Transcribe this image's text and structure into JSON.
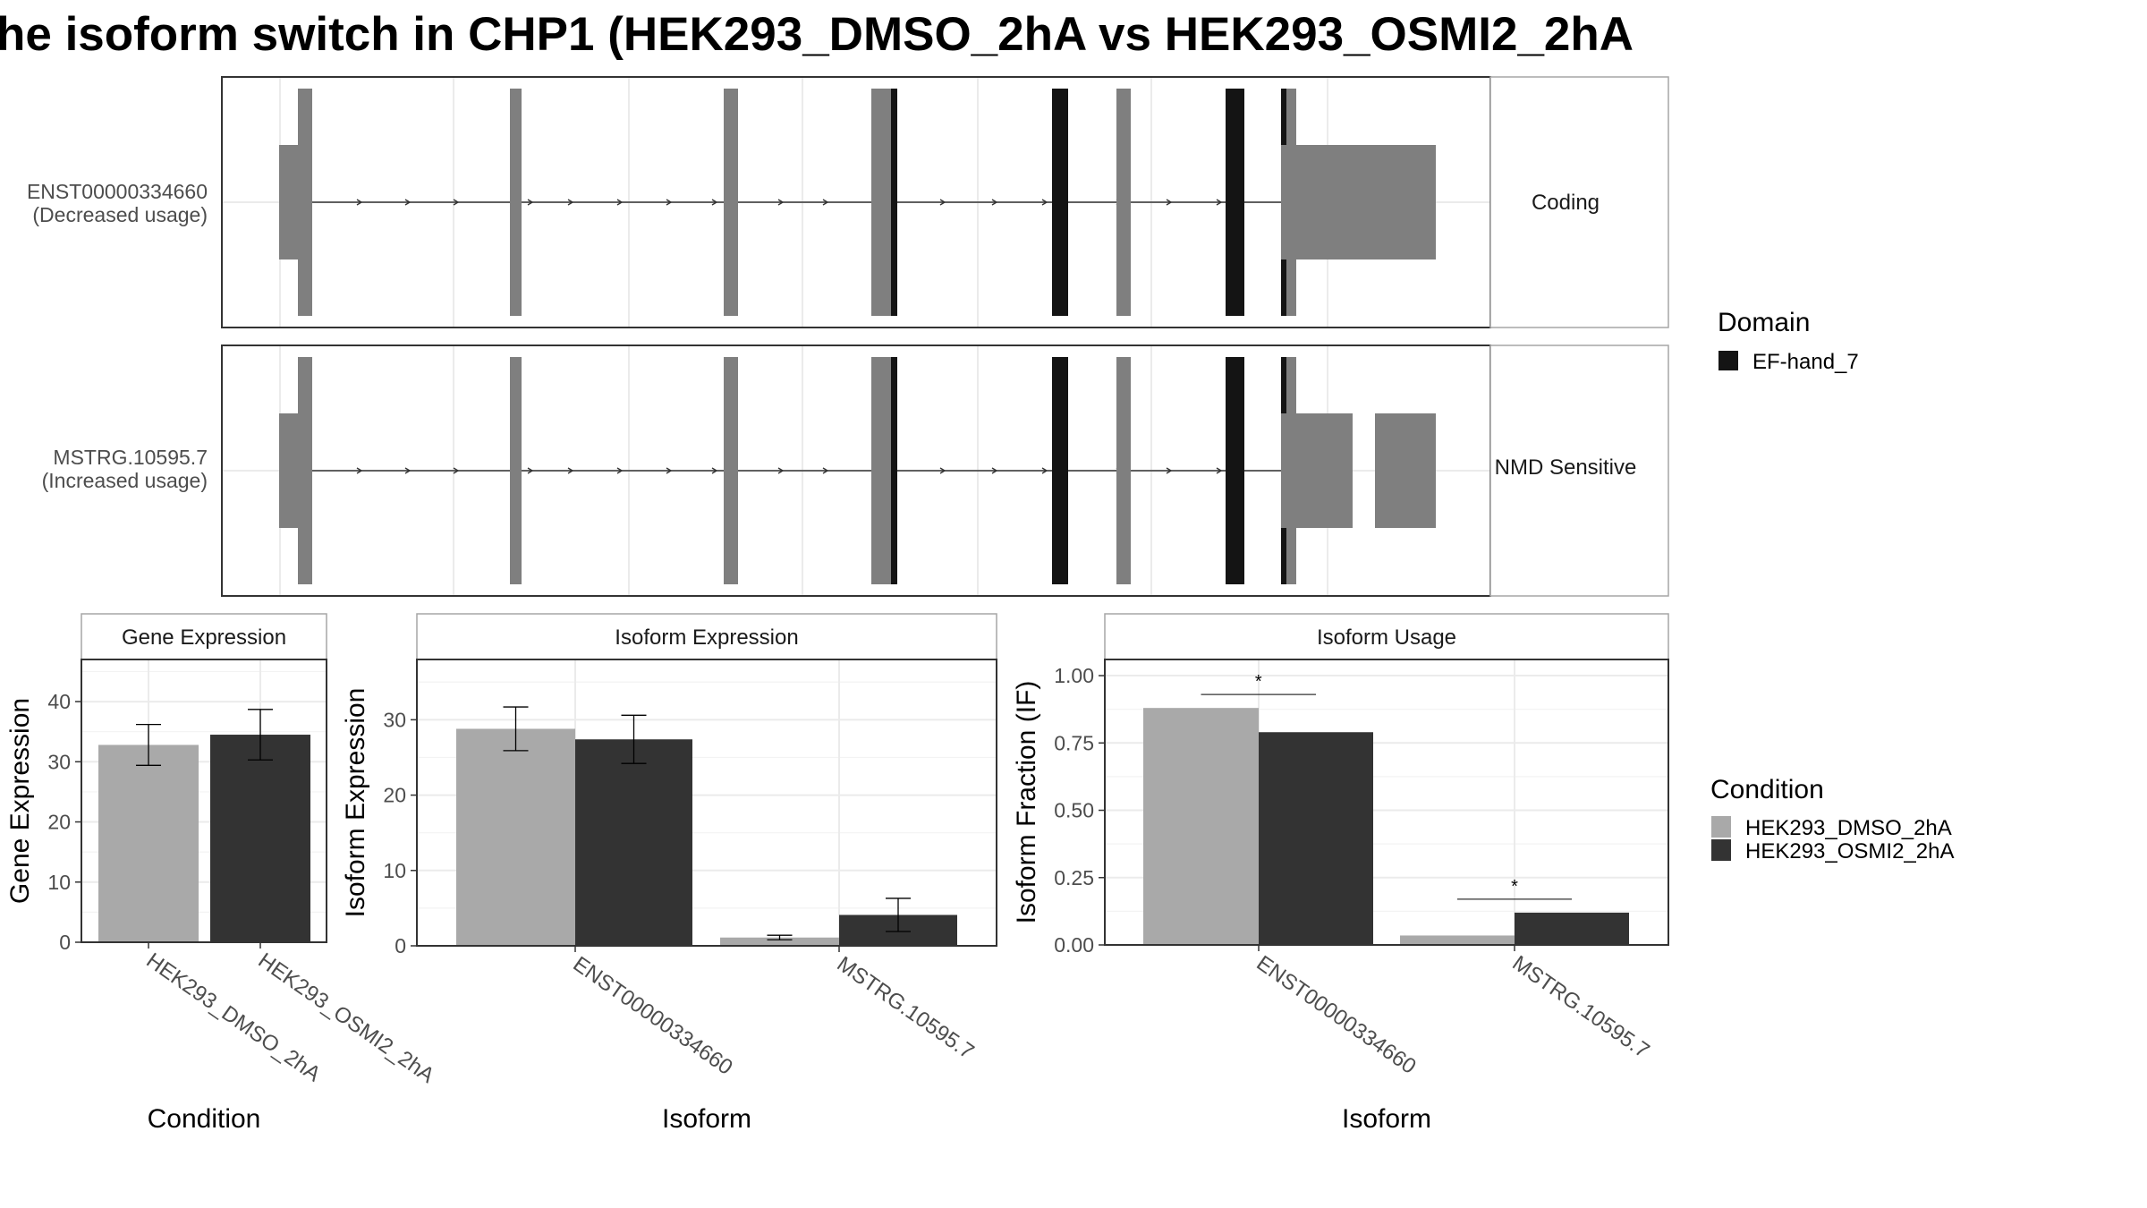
{
  "title": "he isoform switch in CHP1 (HEK293_DMSO_2hA vs HEK293_OSMI2_2hA",
  "colors": {
    "dmso": "#a9a9a9",
    "osmi": "#333333",
    "exon": "#7f7f7f",
    "domain": "#141414",
    "grid": "#ebebeb",
    "axis_text": "#4d4d4d"
  },
  "transcripts": [
    {
      "name": "ENST00000334660",
      "usage": "(Decreased usage)",
      "strip": "Coding"
    },
    {
      "name": "MSTRG.10595.7",
      "usage": "(Increased usage)",
      "strip": "NMD Sensitive"
    }
  ],
  "legend_domain": {
    "title": "Domain",
    "items": [
      {
        "label": "EF-hand_7",
        "color": "#141414"
      }
    ]
  },
  "legend_condition": {
    "title": "Condition",
    "items": [
      {
        "label": "HEK293_DMSO_2hA",
        "color": "#a9a9a9"
      },
      {
        "label": "HEK293_OSMI2_2hA",
        "color": "#333333"
      }
    ]
  },
  "chart_data": [
    {
      "type": "bar",
      "strip": "Gene Expression",
      "xlabel": "Condition",
      "ylabel": "Gene Expression",
      "ylim": [
        0,
        47
      ],
      "yticks": [
        0,
        10,
        20,
        30,
        40
      ],
      "categories": [
        "HEK293_DMSO_2hA",
        "HEK293_OSMI2_2hA"
      ],
      "values": [
        32.8,
        34.5
      ],
      "errors": [
        [
          29.4,
          36.2
        ],
        [
          30.3,
          38.7
        ]
      ]
    },
    {
      "type": "bar",
      "strip": "Isoform Expression",
      "xlabel": "Isoform",
      "ylabel": "Isoform Expression",
      "ylim": [
        0,
        38
      ],
      "yticks": [
        0,
        10,
        20,
        30
      ],
      "categories": [
        "ENST00000334660",
        "MSTRG.10595.7"
      ],
      "series": [
        {
          "name": "HEK293_DMSO_2hA",
          "values": [
            28.8,
            1.1
          ],
          "errors": [
            [
              25.9,
              31.7
            ],
            [
              0.8,
              1.4
            ]
          ]
        },
        {
          "name": "HEK293_OSMI2_2hA",
          "values": [
            27.4,
            4.1
          ],
          "errors": [
            [
              24.2,
              30.6
            ],
            [
              1.9,
              6.3
            ]
          ]
        }
      ]
    },
    {
      "type": "bar",
      "strip": "Isoform Usage",
      "xlabel": "Isoform",
      "ylabel": "Isoform Fraction (IF)",
      "ylim": [
        0,
        1.06
      ],
      "yticks": [
        "0.00",
        "0.25",
        "0.50",
        "0.75",
        "1.00"
      ],
      "categories": [
        "ENST00000334660",
        "MSTRG.10595.7"
      ],
      "series": [
        {
          "name": "HEK293_DMSO_2hA",
          "values": [
            0.88,
            0.035
          ]
        },
        {
          "name": "HEK293_OSMI2_2hA",
          "values": [
            0.79,
            0.12
          ]
        }
      ],
      "significance": [
        "*",
        "*"
      ]
    }
  ]
}
